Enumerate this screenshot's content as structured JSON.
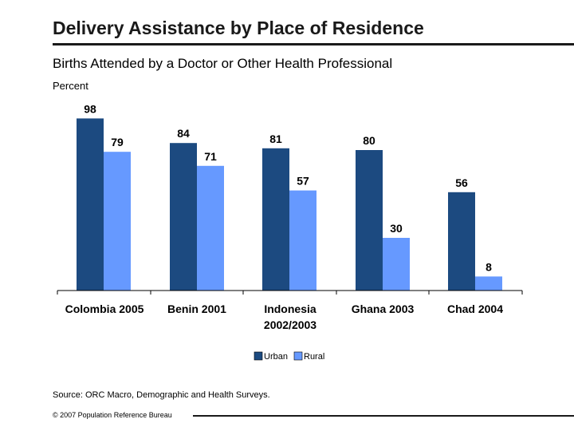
{
  "header": {
    "title": "Delivery Assistance by Place of Residence"
  },
  "colors": {
    "urban": "#1c4a80",
    "rural": "#6699ff",
    "axis": "#000000"
  },
  "chart_data": {
    "type": "bar",
    "title": "Births Attended by a Doctor or Other Health Professional",
    "ylabel": "Percent",
    "xlabel": "",
    "categories": [
      [
        "Colombia 2005"
      ],
      [
        "Benin 2001"
      ],
      [
        "Indonesia",
        "2002/2003"
      ],
      [
        "Ghana 2003"
      ],
      [
        "Chad 2004"
      ]
    ],
    "series": [
      {
        "name": "Urban",
        "values": [
          98,
          84,
          81,
          80,
          56
        ]
      },
      {
        "name": "Rural",
        "values": [
          79,
          71,
          57,
          30,
          8
        ]
      }
    ],
    "ylim": [
      0,
      100
    ],
    "grid": false,
    "legend": "bottom-center"
  },
  "footer": {
    "source": "Source: ORC Macro, Demographic and Health Surveys.",
    "copyright": "© 2007 Population Reference Bureau"
  }
}
